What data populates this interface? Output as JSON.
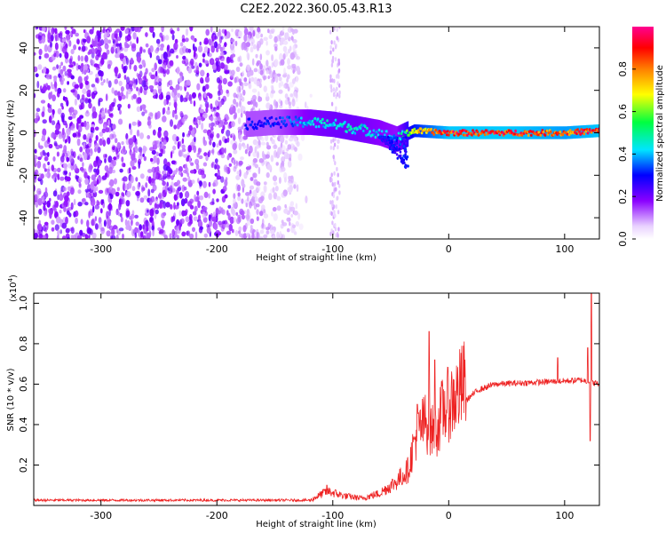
{
  "title": "C2E2.2022.360.05.43.R13",
  "chart_data": [
    {
      "type": "heatmap",
      "xlabel": "Height of straight line (km)",
      "ylabel": "Frequency (Hz)",
      "xlim": [
        -358,
        130
      ],
      "ylim": [
        -50,
        50
      ],
      "xticks": [
        -300,
        -200,
        -100,
        0,
        100
      ],
      "yticks": [
        -40,
        -20,
        0,
        20,
        40
      ],
      "colorbar": {
        "label": "Normalized spectral amplitude",
        "range": [
          0,
          1
        ],
        "ticks": [
          0.0,
          0.2,
          0.4,
          0.6,
          0.8
        ],
        "colormap": [
          "#ffffff",
          "#e9d2ff",
          "#8a00ff",
          "#0000ff",
          "#00e5ff",
          "#00ff40",
          "#ffff00",
          "#ff8000",
          "#ff0000",
          "#ff0090"
        ]
      },
      "features": {
        "noise_region_x": [
          -358,
          -130
        ],
        "signal_band": [
          {
            "x": -175,
            "y": 4,
            "amp": 0.3
          },
          {
            "x": -150,
            "y": 5,
            "amp": 0.3
          },
          {
            "x": -120,
            "y": 5,
            "amp": 0.42
          },
          {
            "x": -100,
            "y": 4,
            "amp": 0.45
          },
          {
            "x": -80,
            "y": 2,
            "amp": 0.45
          },
          {
            "x": -60,
            "y": 0,
            "amp": 0.4
          },
          {
            "x": -45,
            "y": -3,
            "amp": 0.38
          },
          {
            "x": -30,
            "y": 1,
            "amp": 0.7
          },
          {
            "x": 0,
            "y": 0,
            "amp": 0.9
          },
          {
            "x": 50,
            "y": 0,
            "amp": 0.9
          },
          {
            "x": 100,
            "y": 0,
            "amp": 0.85
          },
          {
            "x": 130,
            "y": 1,
            "amp": 0.9
          }
        ]
      }
    },
    {
      "type": "line",
      "xlabel": "Height of straight line (km)",
      "ylabel": "SNR (10 * v/v)",
      "yscale_label": "(x10",
      "yscale_exp": "4",
      "yscale_close": ")",
      "xlim": [
        -358,
        130
      ],
      "ylim": [
        0,
        1.05
      ],
      "xticks": [
        -300,
        -200,
        -100,
        0,
        100
      ],
      "yticks": [
        0.2,
        0.4,
        0.6,
        0.8,
        1.0
      ],
      "line_color": "#ee2222",
      "envelope": [
        {
          "x": -358,
          "y": 0.02
        },
        {
          "x": -120,
          "y": 0.02
        },
        {
          "x": -105,
          "y": 0.06
        },
        {
          "x": -90,
          "y": 0.04
        },
        {
          "x": -75,
          "y": 0.03
        },
        {
          "x": -60,
          "y": 0.05
        },
        {
          "x": -45,
          "y": 0.1
        },
        {
          "x": -35,
          "y": 0.15
        },
        {
          "x": -28,
          "y": 0.3
        },
        {
          "x": -20,
          "y": 0.35
        },
        {
          "x": -12,
          "y": 0.3
        },
        {
          "x": -5,
          "y": 0.4
        },
        {
          "x": 5,
          "y": 0.45
        },
        {
          "x": 15,
          "y": 0.52
        },
        {
          "x": 25,
          "y": 0.57
        },
        {
          "x": 40,
          "y": 0.6
        },
        {
          "x": 80,
          "y": 0.61
        },
        {
          "x": 115,
          "y": 0.62
        },
        {
          "x": 130,
          "y": 0.6
        }
      ],
      "spikes": [
        {
          "x": -17,
          "y": 0.86
        },
        {
          "x": -12,
          "y": 0.72
        },
        {
          "x": -27,
          "y": 0.5
        },
        {
          "x": -105,
          "y": 0.1
        },
        {
          "x": 94,
          "y": 0.73
        },
        {
          "x": 120,
          "y": 0.78
        },
        {
          "x": 123,
          "y": 1.05
        },
        {
          "x": 122,
          "y": 0.32
        }
      ]
    }
  ]
}
